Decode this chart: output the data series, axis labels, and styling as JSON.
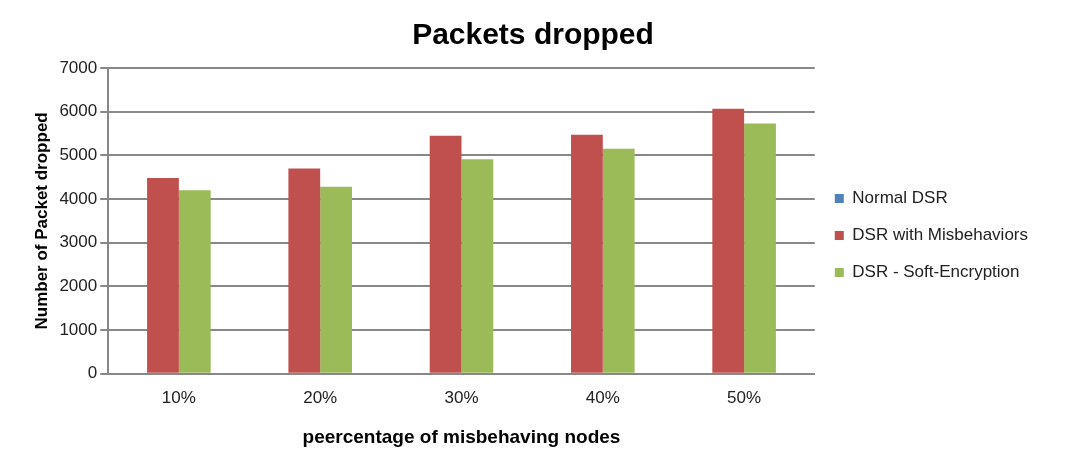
{
  "chart_data": {
    "type": "bar",
    "title": "Packets dropped",
    "xlabel": "peercentage of misbehaving nodes",
    "ylabel": "Number of Packet dropped",
    "categories": [
      "10%",
      "20%",
      "30%",
      "40%",
      "50%"
    ],
    "series": [
      {
        "name": "Normal DSR",
        "color": "#4f81bd",
        "values": [
          null,
          null,
          null,
          null,
          null
        ]
      },
      {
        "name": "DSR with Misbehaviors",
        "color": "#c0504d",
        "values": [
          4480,
          4700,
          5450,
          5470,
          6070
        ]
      },
      {
        "name": "DSR - Soft-Encryption",
        "color": "#9bbb59",
        "values": [
          4200,
          4280,
          4910,
          5150,
          5730
        ]
      }
    ],
    "ylim": [
      0,
      7000
    ],
    "yticks": [
      0,
      1000,
      2000,
      3000,
      4000,
      5000,
      6000,
      7000
    ],
    "grid": "y",
    "legend": "right"
  }
}
